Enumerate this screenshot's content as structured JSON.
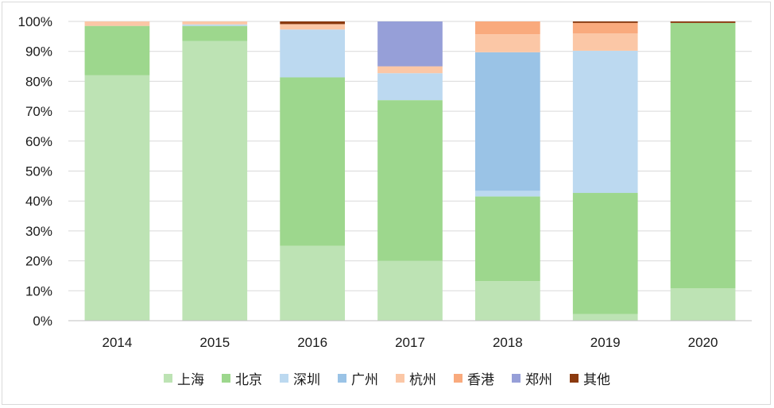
{
  "chart_data": {
    "type": "bar",
    "stacked": true,
    "percent": true,
    "title": "",
    "xlabel": "",
    "ylabel": "",
    "ylim": [
      0,
      100
    ],
    "yticks": [
      "0%",
      "10%",
      "20%",
      "30%",
      "40%",
      "50%",
      "60%",
      "70%",
      "80%",
      "90%",
      "100%"
    ],
    "grid": true,
    "legend_position": "bottom",
    "categories": [
      "2014",
      "2015",
      "2016",
      "2017",
      "2018",
      "2019",
      "2020"
    ],
    "series": [
      {
        "name": "上海",
        "color": "#bde3b4",
        "values": [
          82,
          93.5,
          25,
          20,
          13.2,
          2.2,
          10.8
        ]
      },
      {
        "name": "北京",
        "color": "#9dd78d",
        "values": [
          16.5,
          5,
          56.3,
          53.7,
          28.3,
          40.5,
          88.7
        ]
      },
      {
        "name": "深圳",
        "color": "#bcd9f0",
        "values": [
          0,
          0.5,
          16,
          9,
          1.9,
          47.5,
          0
        ]
      },
      {
        "name": "广州",
        "color": "#9ac3e6",
        "values": [
          0,
          0,
          0,
          0,
          46.3,
          0,
          0
        ]
      },
      {
        "name": "杭州",
        "color": "#fbc7a6",
        "values": [
          1.5,
          1,
          1.8,
          2.3,
          6,
          5.8,
          0
        ]
      },
      {
        "name": "香港",
        "color": "#f9aa7d",
        "values": [
          0,
          0,
          0,
          0,
          4.3,
          3.5,
          0
        ]
      },
      {
        "name": "郑州",
        "color": "#969fd8",
        "values": [
          0,
          0,
          0,
          15,
          0,
          0,
          0
        ]
      },
      {
        "name": "其他",
        "color": "#8b3a0f",
        "values": [
          0,
          0,
          0.9,
          0,
          0,
          0.5,
          0.5
        ]
      }
    ]
  }
}
